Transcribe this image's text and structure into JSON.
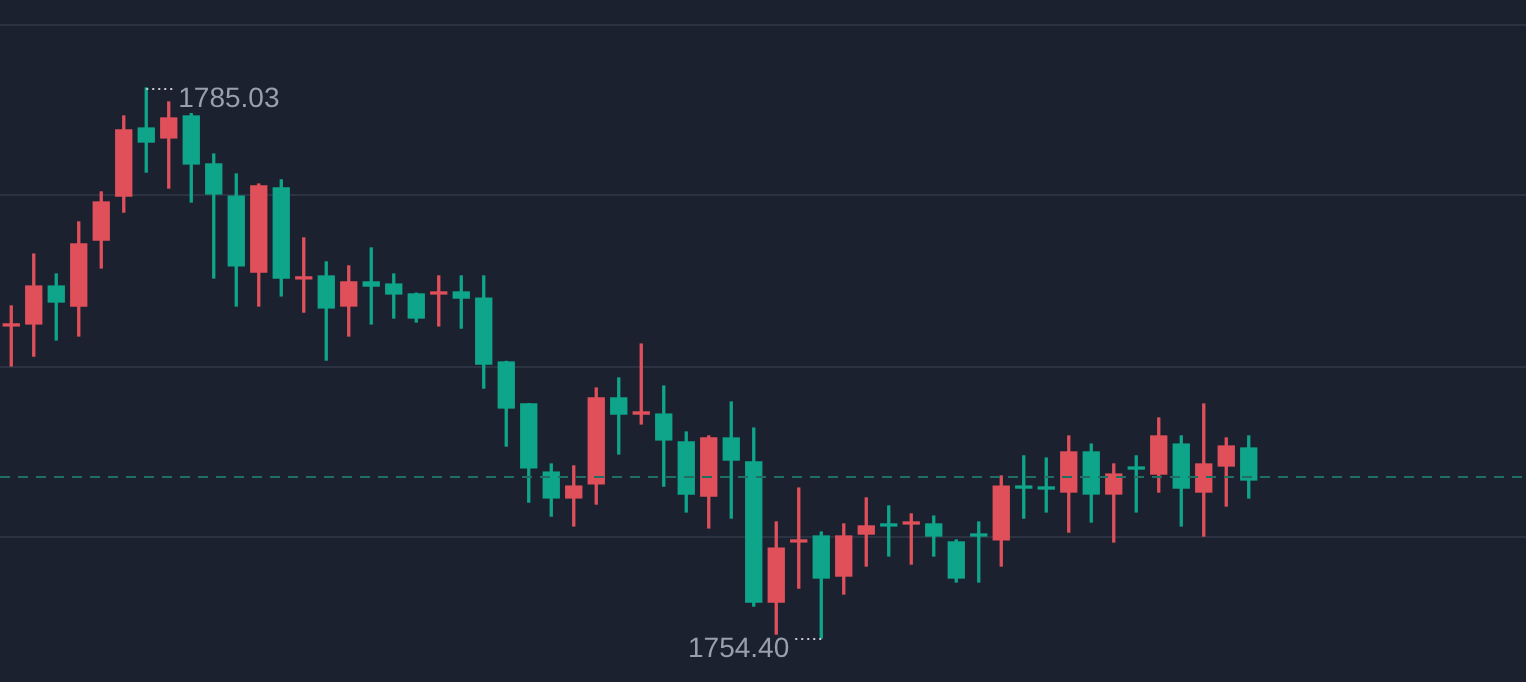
{
  "chart_data": {
    "type": "candlestick",
    "categories": [
      null,
      null,
      null,
      null,
      null,
      null,
      null,
      null,
      null,
      null,
      null,
      null,
      null,
      null,
      null,
      null,
      null,
      null,
      null,
      null,
      null,
      null,
      null,
      null,
      null,
      null,
      null,
      null,
      null,
      null,
      null,
      null,
      null,
      null,
      null,
      null,
      null,
      null,
      null,
      null,
      null,
      null,
      null,
      null,
      null,
      null,
      null,
      null,
      null,
      null,
      null,
      null,
      null,
      null,
      null,
      null
    ],
    "ohlc": [
      [
        1771.78,
        1772.89,
        1769.55,
        1771.89
      ],
      [
        1771.89,
        1775.78,
        1770.1,
        1774.0
      ],
      [
        1774.0,
        1774.67,
        1771.0,
        1773.11
      ],
      [
        1772.89,
        1777.57,
        1771.22,
        1776.34
      ],
      [
        1776.56,
        1779.24,
        1775.01,
        1778.68
      ],
      [
        1779.01,
        1783.47,
        1778.12,
        1782.69
      ],
      [
        1782.8,
        1785.03,
        1780.35,
        1782.02
      ],
      [
        1782.25,
        1784.25,
        1779.46,
        1783.36
      ],
      [
        1783.47,
        1783.6,
        1778.68,
        1780.8
      ],
      [
        1780.8,
        1781.35,
        1774.45,
        1779.13
      ],
      [
        1779.01,
        1780.24,
        1772.89,
        1775.12
      ],
      [
        1774.78,
        1779.68,
        1772.89,
        1779.57
      ],
      [
        1779.46,
        1779.91,
        1773.45,
        1774.45
      ],
      [
        1774.4,
        1776.68,
        1772.55,
        1774.51
      ],
      [
        1774.56,
        1775.34,
        1769.88,
        1772.78
      ],
      [
        1772.89,
        1775.12,
        1771.22,
        1774.23
      ],
      [
        1774.23,
        1776.12,
        1771.89,
        1774.0
      ],
      [
        1774.11,
        1774.67,
        1772.22,
        1773.56
      ],
      [
        1773.56,
        1773.6,
        1772.0,
        1772.22
      ],
      [
        1773.56,
        1774.56,
        1771.78,
        1773.67
      ],
      [
        1773.67,
        1774.56,
        1771.66,
        1773.33
      ],
      [
        1773.33,
        1774.56,
        1768.32,
        1769.66
      ],
      [
        1769.77,
        1769.8,
        1765.09,
        1767.21
      ],
      [
        1767.43,
        1767.45,
        1761.97,
        1763.87
      ],
      [
        1763.64,
        1764.09,
        1761.19,
        1762.2
      ],
      [
        1762.2,
        1763.98,
        1760.64,
        1762.86
      ],
      [
        1762.98,
        1768.32,
        1761.86,
        1767.77
      ],
      [
        1767.77,
        1768.88,
        1764.65,
        1766.87
      ],
      [
        1766.87,
        1770.77,
        1766.32,
        1766.99
      ],
      [
        1766.87,
        1768.43,
        1762.86,
        1765.43
      ],
      [
        1765.32,
        1765.87,
        1761.42,
        1762.42
      ],
      [
        1762.31,
        1765.65,
        1760.53,
        1765.54
      ],
      [
        1765.54,
        1767.54,
        1761.08,
        1764.31
      ],
      [
        1764.2,
        1766.09,
        1756.18,
        1756.4
      ],
      [
        1756.4,
        1760.86,
        1754.62,
        1759.41
      ],
      [
        1759.75,
        1762.75,
        1757.18,
        1759.86
      ],
      [
        1760.08,
        1760.3,
        1754.4,
        1757.74
      ],
      [
        1757.85,
        1760.75,
        1756.85,
        1760.08
      ],
      [
        1760.19,
        1762.2,
        1758.41,
        1760.64
      ],
      [
        1760.75,
        1761.75,
        1758.97,
        1760.64
      ],
      [
        1760.75,
        1761.31,
        1758.52,
        1760.86
      ],
      [
        1760.75,
        1761.19,
        1758.97,
        1760.08
      ],
      [
        1759.75,
        1759.86,
        1757.52,
        1757.74
      ],
      [
        1760.19,
        1760.86,
        1757.52,
        1760.08
      ],
      [
        1759.86,
        1763.42,
        1758.41,
        1762.86
      ],
      [
        1762.86,
        1764.54,
        1761.08,
        1762.75
      ],
      [
        1762.81,
        1764.42,
        1761.42,
        1762.7
      ],
      [
        1762.53,
        1765.65,
        1760.3,
        1764.76
      ],
      [
        1764.76,
        1765.2,
        1760.86,
        1762.42
      ],
      [
        1762.42,
        1764.09,
        1759.75,
        1763.53
      ],
      [
        1763.92,
        1764.54,
        1761.42,
        1763.81
      ],
      [
        1763.53,
        1766.65,
        1762.53,
        1765.65
      ],
      [
        1765.2,
        1765.65,
        1760.64,
        1762.75
      ],
      [
        1762.53,
        1767.43,
        1760.08,
        1764.09
      ],
      [
        1763.98,
        1765.54,
        1761.75,
        1765.09
      ],
      [
        1764.98,
        1765.65,
        1762.2,
        1763.2
      ]
    ],
    "colors": [
      "#e0505a",
      "#e0505a",
      "#0ea58a",
      "#e0505a",
      "#e0505a",
      "#e0505a",
      "#0ea58a",
      "#e0505a",
      "#0ea58a",
      "#0ea58a",
      "#0ea58a",
      "#e0505a",
      "#0ea58a",
      "#e0505a",
      "#0ea58a",
      "#e0505a",
      "#0ea58a",
      "#0ea58a",
      "#0ea58a",
      "#e0505a",
      "#0ea58a",
      "#0ea58a",
      "#0ea58a",
      "#0ea58a",
      "#0ea58a",
      "#e0505a",
      "#e0505a",
      "#0ea58a",
      "#e0505a",
      "#0ea58a",
      "#0ea58a",
      "#e0505a",
      "#0ea58a",
      "#0ea58a",
      "#e0505a",
      "#e0505a",
      "#0ea58a",
      "#e0505a",
      "#e0505a",
      "#0ea58a",
      "#e0505a",
      "#0ea58a",
      "#0ea58a",
      "#0ea58a",
      "#e0505a",
      "#0ea58a",
      "#0ea58a",
      "#e0505a",
      "#0ea58a",
      "#e0505a",
      "#0ea58a",
      "#e0505a",
      "#0ea58a",
      "#e0505a",
      "#e0505a",
      "#0ea58a"
    ],
    "ylim": [
      1751.95,
      1789.93
    ],
    "yticks": [
      {
        "value": 1760.08,
        "label": null
      },
      {
        "value": 1769.55,
        "label": null
      },
      {
        "value": 1779.13,
        "label": null
      },
      {
        "value": 1788.59,
        "label": null
      }
    ],
    "grid": "y",
    "legend": false,
    "ref_lines": [
      {
        "axis": "y",
        "value": 1763.37,
        "color": "#1f6f62",
        "line_style": "dashed"
      }
    ],
    "annotations": [
      "1785.03",
      "1754.40"
    ]
  }
}
